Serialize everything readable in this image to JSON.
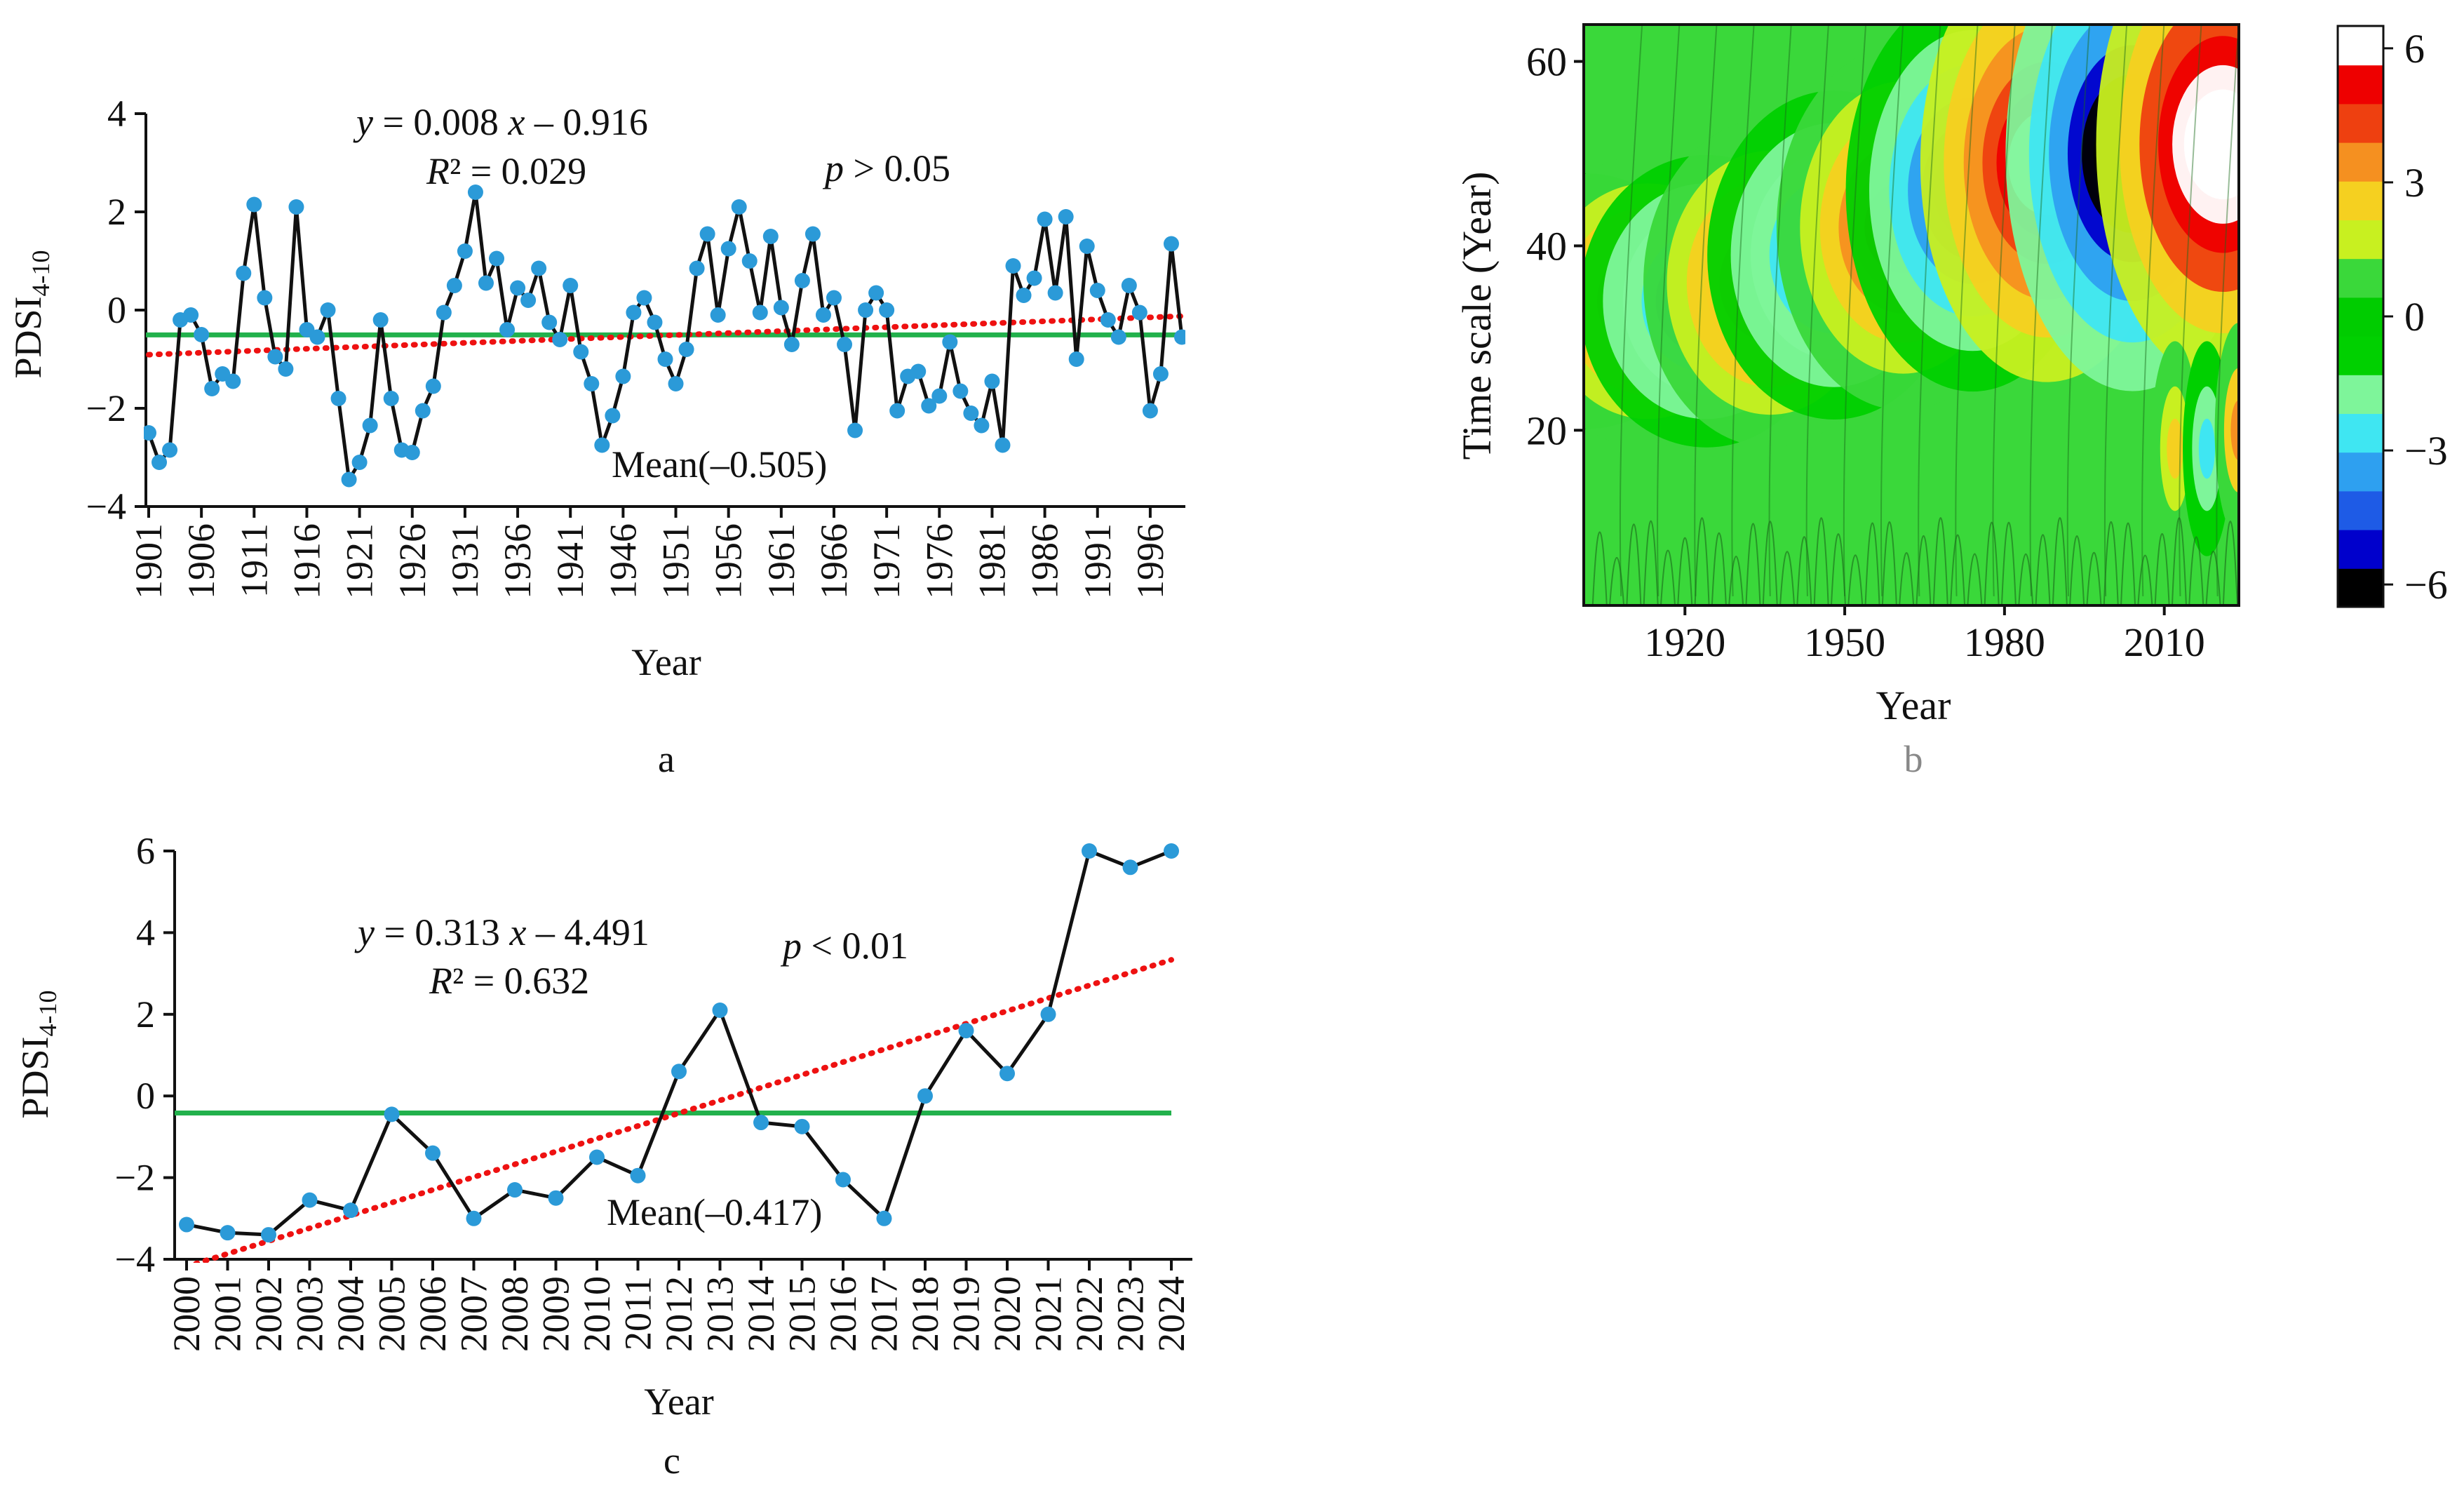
{
  "chart_data": [
    {
      "panel": "a",
      "type": "line",
      "ylabel_main": "PDSI",
      "ylabel_sub": "4-10",
      "xlabel": "Year",
      "caption": "a",
      "ylim": [
        -4,
        4
      ],
      "yticks": [
        "4",
        "2",
        "0",
        "−2",
        "−4"
      ],
      "xticks": [
        "1901",
        "1906",
        "1911",
        "1916",
        "1921",
        "1926",
        "1931",
        "1936",
        "1941",
        "1946",
        "1951",
        "1956",
        "1961",
        "1966",
        "1971",
        "1976",
        "1981",
        "1986",
        "1991",
        "1996"
      ],
      "x_start": 1901,
      "values": [
        -2.5,
        -3.1,
        -2.85,
        -0.2,
        -0.1,
        -0.5,
        -1.6,
        -1.3,
        -1.45,
        0.75,
        2.15,
        0.25,
        -0.95,
        -1.2,
        2.1,
        -0.4,
        -0.55,
        0.0,
        -1.8,
        -3.45,
        -3.1,
        -2.35,
        -0.2,
        -1.8,
        -2.85,
        -2.9,
        -2.05,
        -1.55,
        -0.05,
        0.5,
        1.2,
        2.4,
        0.55,
        1.05,
        -0.4,
        0.45,
        0.2,
        0.85,
        -0.25,
        -0.6,
        0.5,
        -0.85,
        -1.5,
        -2.75,
        -2.15,
        -1.35,
        -0.05,
        0.25,
        -0.25,
        -1.0,
        -1.5,
        -0.8,
        0.85,
        1.55,
        -0.1,
        1.25,
        2.1,
        1.0,
        -0.05,
        1.5,
        0.05,
        -0.7,
        0.6,
        1.55,
        -0.1,
        0.25,
        -0.7,
        -2.45,
        0.0,
        0.35,
        0.0,
        -2.05,
        -1.35,
        -1.25,
        -1.95,
        -1.75,
        -0.65,
        -1.65,
        -2.1,
        -2.35,
        -1.45,
        -2.75,
        0.9,
        0.3,
        0.65,
        1.85,
        0.35,
        1.9,
        -1.0,
        1.3,
        0.4,
        -0.2,
        -0.55,
        0.5,
        -0.05,
        -2.05,
        -1.3,
        1.35,
        -0.55
      ],
      "mean": -0.505,
      "mean_label": "Mean(–0.505)",
      "trend": {
        "slope": 0.008,
        "intercept": -0.916
      },
      "eq_y": "y",
      "eq_rest": " = 0.008 ",
      "eq_x": "x",
      "eq_const": " – 0.916",
      "r2_label": "R",
      "r2_value": "² = 0.029",
      "p_label": "p",
      "p_value": " > 0.05",
      "colors": {
        "line": "#111111",
        "marker": "#2b9ad8",
        "mean": "#22b14c",
        "trend": "#ee1111"
      }
    },
    {
      "panel": "b",
      "type": "heatmap",
      "ylabel": "Time scale (Year)",
      "xlabel": "Year",
      "caption": "b",
      "xlim": [
        1901,
        2024
      ],
      "ylim": [
        1,
        64
      ],
      "xticks": [
        1920,
        1950,
        1980,
        2010
      ],
      "yticks": [
        20,
        40,
        60
      ],
      "colorbar_ticks": [
        "6",
        "3",
        "0",
        "−3",
        "−6"
      ],
      "colorbar_range": [
        -6.5,
        6.5
      ],
      "colorscale": [
        "#000000",
        "#0000cc",
        "#1e5be6",
        "#2ea0f0",
        "#3fe6f2",
        "#7ef59a",
        "#00d000",
        "#00cc00",
        "#3ad83a",
        "#c8f020",
        "#f5d020",
        "#f59020",
        "#ee4010",
        "#ee0000",
        "#ffffff"
      ]
    },
    {
      "panel": "c",
      "type": "line",
      "ylabel_main": "PDSI",
      "ylabel_sub": "4-10",
      "xlabel": "Year",
      "caption": "c",
      "ylim": [
        -4,
        6
      ],
      "yticks": [
        "6",
        "4",
        "2",
        "0",
        "−2",
        "−4"
      ],
      "xticks": [
        "2000",
        "2001",
        "2002",
        "2003",
        "2004",
        "2005",
        "2006",
        "2007",
        "2008",
        "2009",
        "2010",
        "2011",
        "2012",
        "2013",
        "2014",
        "2015",
        "2016",
        "2017",
        "2018",
        "2019",
        "2020",
        "2021",
        "2022",
        "2023",
        "2024"
      ],
      "x_start": 2000,
      "values": [
        -3.15,
        -3.35,
        -3.4,
        -2.55,
        -2.8,
        -0.45,
        -1.4,
        -3.0,
        -2.3,
        -2.5,
        -1.5,
        -1.95,
        0.6,
        2.1,
        -0.65,
        -0.75,
        -2.05,
        -3.0,
        0.0,
        1.6,
        0.55,
        2.0,
        6.0,
        5.6,
        6.0
      ],
      "mean": -0.417,
      "mean_label": "Mean(–0.417)",
      "trend": {
        "slope": 0.313,
        "intercept": -4.491
      },
      "eq_y": "y",
      "eq_rest": " = 0.313 ",
      "eq_x": "x",
      "eq_const": " – 4.491",
      "r2_label": "R",
      "r2_value": "² = 0.632",
      "p_label": "p",
      "p_value": " < 0.01",
      "colors": {
        "line": "#111111",
        "marker": "#2b9ad8",
        "mean": "#22b14c",
        "trend": "#ee1111"
      }
    }
  ]
}
